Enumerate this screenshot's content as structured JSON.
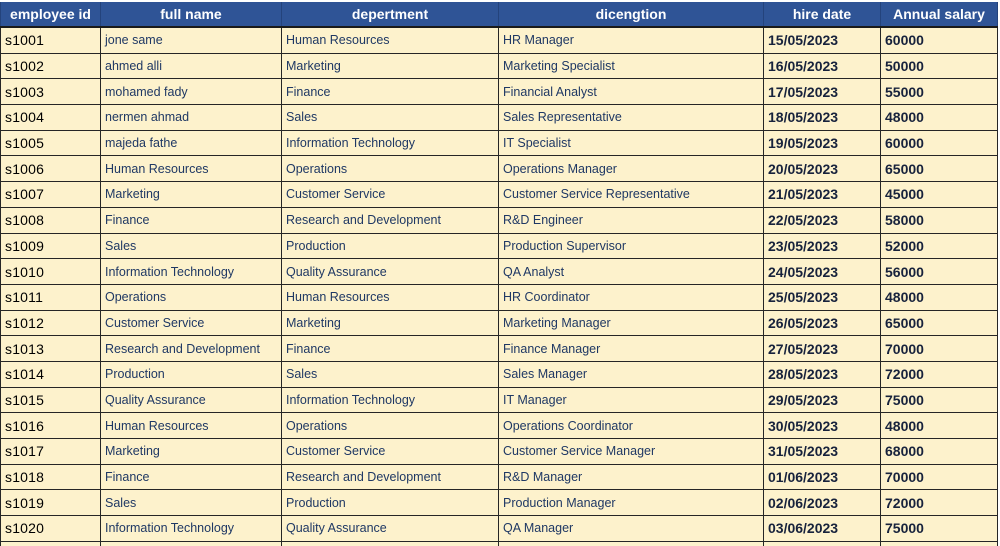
{
  "colors": {
    "header_bg": "#2F5496",
    "header_text": "#FFFFFF",
    "row_bg": "#FDF2CC",
    "cell_text": "#1F3864",
    "id_text": "#000000",
    "num_text": "#17223C",
    "border": "#262626"
  },
  "table": {
    "headers": [
      "employee id",
      "full name",
      "depertment",
      "dicengtion",
      "hire date",
      "Annual salary"
    ],
    "rows": [
      [
        "s1001",
        "jone same",
        "Human Resources",
        "HR Manager",
        "15/05/2023",
        "60000"
      ],
      [
        "s1002",
        "ahmed alli",
        "Marketing",
        "Marketing Specialist",
        "16/05/2023",
        "50000"
      ],
      [
        "s1003",
        "mohamed fady",
        "Finance",
        "Financial Analyst",
        "17/05/2023",
        "55000"
      ],
      [
        "s1004",
        "nermen ahmad",
        "Sales",
        "Sales Representative",
        "18/05/2023",
        "48000"
      ],
      [
        "s1005",
        "majeda fathe",
        "Information Technology",
        "IT Specialist",
        "19/05/2023",
        "60000"
      ],
      [
        "s1006",
        "Human Resources",
        "Operations",
        "Operations Manager",
        "20/05/2023",
        "65000"
      ],
      [
        "s1007",
        "Marketing",
        "Customer Service",
        "Customer Service Representative",
        "21/05/2023",
        "45000"
      ],
      [
        "s1008",
        "Finance",
        "Research and Development",
        "R&D Engineer",
        "22/05/2023",
        "58000"
      ],
      [
        "s1009",
        "Sales",
        "Production",
        "Production Supervisor",
        "23/05/2023",
        "52000"
      ],
      [
        "s1010",
        "Information Technology",
        "Quality Assurance",
        "QA Analyst",
        "24/05/2023",
        "56000"
      ],
      [
        "s1011",
        "Operations",
        "Human Resources",
        "HR Coordinator",
        "25/05/2023",
        "48000"
      ],
      [
        "s1012",
        "Customer Service",
        "Marketing",
        "Marketing Manager",
        "26/05/2023",
        "65000"
      ],
      [
        "s1013",
        "Research and Development",
        "Finance",
        "Finance Manager",
        "27/05/2023",
        "70000"
      ],
      [
        "s1014",
        "Production",
        "Sales",
        "Sales Manager",
        "28/05/2023",
        "72000"
      ],
      [
        "s1015",
        "Quality Assurance",
        "Information Technology",
        "IT Manager",
        "29/05/2023",
        "75000"
      ],
      [
        "s1016",
        "Human Resources",
        "Operations",
        "Operations Coordinator",
        "30/05/2023",
        "48000"
      ],
      [
        "s1017",
        "Marketing",
        "Customer Service",
        "Customer Service Manager",
        "31/05/2023",
        "68000"
      ],
      [
        "s1018",
        "Finance",
        "Research and Development",
        "R&D Manager",
        "01/06/2023",
        "70000"
      ],
      [
        "s1019",
        "Sales",
        "Production",
        "Production Manager",
        "02/06/2023",
        "72000"
      ],
      [
        "s1020",
        "Information Technology",
        "Quality Assurance",
        "QA Manager",
        "03/06/2023",
        "75000"
      ]
    ]
  }
}
